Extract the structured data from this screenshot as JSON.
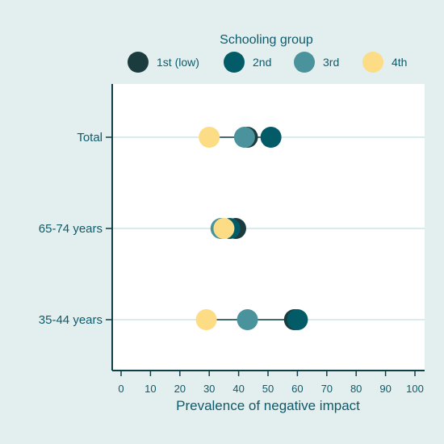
{
  "chart_data": {
    "type": "dot",
    "legend_title": "Schooling group",
    "legend_position": "top",
    "series": [
      {
        "name": "1st (low)",
        "color": "#1c3b3f"
      },
      {
        "name": "2nd",
        "color": "#045b68"
      },
      {
        "name": "3rd",
        "color": "#4a929c"
      },
      {
        "name": "4th",
        "color": "#fddc86"
      }
    ],
    "categories": [
      {
        "label": "Total",
        "values": [
          43,
          51,
          42,
          30
        ]
      },
      {
        "label": "65-74 years",
        "values": [
          39,
          37,
          34,
          35
        ]
      },
      {
        "label": "35-44 years",
        "values": [
          59,
          60,
          43,
          29
        ]
      }
    ],
    "xlabel": "Prevalence of negative impact",
    "xlim": [
      0,
      100
    ],
    "xticks": [
      "0",
      "10",
      "20",
      "30",
      "40",
      "50",
      "60",
      "70",
      "80",
      "90",
      "100"
    ],
    "colors": {
      "outer_background": "#e3eeee",
      "plot_background": "#ffffff",
      "text": "#0e5c6b",
      "gridline": "#cfe4e6",
      "range_line": "#0e3f48"
    }
  }
}
